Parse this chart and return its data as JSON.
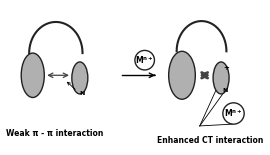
{
  "bg_color": "#ffffff",
  "gray_fill": "#b0b0b0",
  "gray_edge": "#222222",
  "arrow_color": "#444444",
  "text_color": "#000000",
  "left_label": "Weak π - π interaction",
  "right_label": "Enhanced CT interaction"
}
